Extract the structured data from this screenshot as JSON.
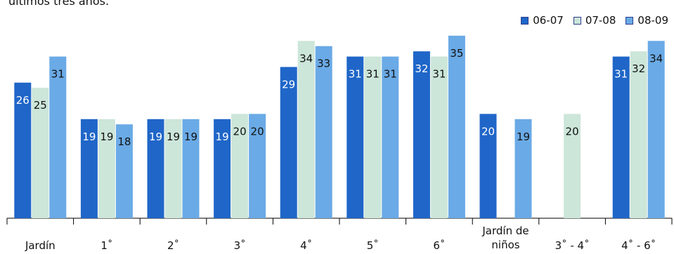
{
  "page_text": {
    "top_fragment": "últimos tres años."
  },
  "chart_data": {
    "type": "bar",
    "title": "",
    "xlabel": "",
    "ylabel": "",
    "ylim": [
      0,
      37
    ],
    "grid": false,
    "legend_position": "top-right",
    "categories": [
      "Jardín",
      "1˚",
      "2˚",
      "3˚",
      "4˚",
      "5˚",
      "6˚",
      "Jardín de niños",
      "3˚ - 4˚",
      "4˚ - 6˚"
    ],
    "series": [
      {
        "name": "06-07",
        "color": "#1f66c8",
        "values": [
          26,
          19,
          19,
          19,
          29,
          31,
          32,
          20,
          null,
          31
        ]
      },
      {
        "name": "07-08",
        "color": "#cce6d9",
        "values": [
          25,
          19,
          19,
          20,
          34,
          31,
          31,
          null,
          20,
          32
        ]
      },
      {
        "name": "08-09",
        "color": "#6aaae6",
        "values": [
          31,
          18,
          19,
          20,
          33,
          31,
          35,
          19,
          null,
          34
        ]
      }
    ]
  }
}
